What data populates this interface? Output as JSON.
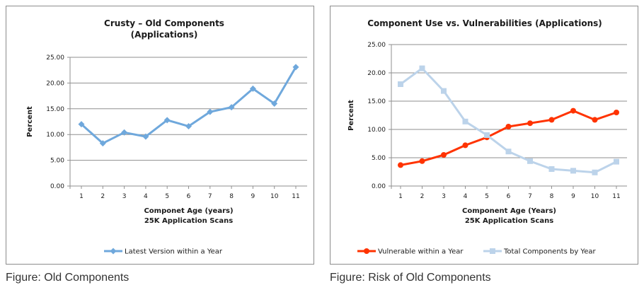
{
  "captions": {
    "left": "Figure: Old Components",
    "right": "Figure: Risk of Old Components"
  },
  "chart_data": [
    {
      "type": "line",
      "title": "Crusty – Old Components",
      "subtitle": "(Applications)",
      "xlabel": "Componet Age (years)",
      "xlabel2": "25K Application Scans",
      "ylabel": "Percent",
      "categories": [
        "1",
        "2",
        "3",
        "4",
        "5",
        "6",
        "7",
        "8",
        "9",
        "10",
        "11"
      ],
      "yticks": [
        "0.00",
        "5.00",
        "10.00",
        "15.00",
        "20.00",
        "25.00"
      ],
      "ylim": [
        0,
        25
      ],
      "grid": true,
      "legend_position": "bottom",
      "series": [
        {
          "name": "Latest Version within a Year",
          "color": "#6fa8dc",
          "marker": "diamond",
          "values": [
            12.0,
            8.3,
            10.4,
            9.6,
            12.8,
            11.6,
            14.4,
            15.3,
            18.9,
            16.0,
            23.1
          ]
        }
      ]
    },
    {
      "type": "line",
      "title": "Component Use vs. Vulnerabilities (Applications)",
      "xlabel": "Component Age (Years)",
      "xlabel2": "25K Application Scans",
      "ylabel": "Percent",
      "categories": [
        "1",
        "2",
        "3",
        "4",
        "5",
        "6",
        "7",
        "8",
        "9",
        "10",
        "11"
      ],
      "yticks": [
        "0.00",
        "5.00",
        "10.00",
        "15.00",
        "20.00",
        "25.00"
      ],
      "ylim": [
        0,
        25
      ],
      "grid": true,
      "legend_position": "bottom",
      "series": [
        {
          "name": "Vulnerable within a Year",
          "color": "#ff3300",
          "marker": "circle",
          "values": [
            3.7,
            4.4,
            5.5,
            7.2,
            8.6,
            10.5,
            11.1,
            11.7,
            13.3,
            11.7,
            13.0
          ]
        },
        {
          "name": "Total Components by Year",
          "color": "#bcd3ea",
          "marker": "square",
          "values": [
            18.0,
            20.8,
            16.8,
            11.4,
            9.0,
            6.1,
            4.4,
            3.0,
            2.7,
            2.4,
            4.3
          ]
        }
      ]
    }
  ]
}
